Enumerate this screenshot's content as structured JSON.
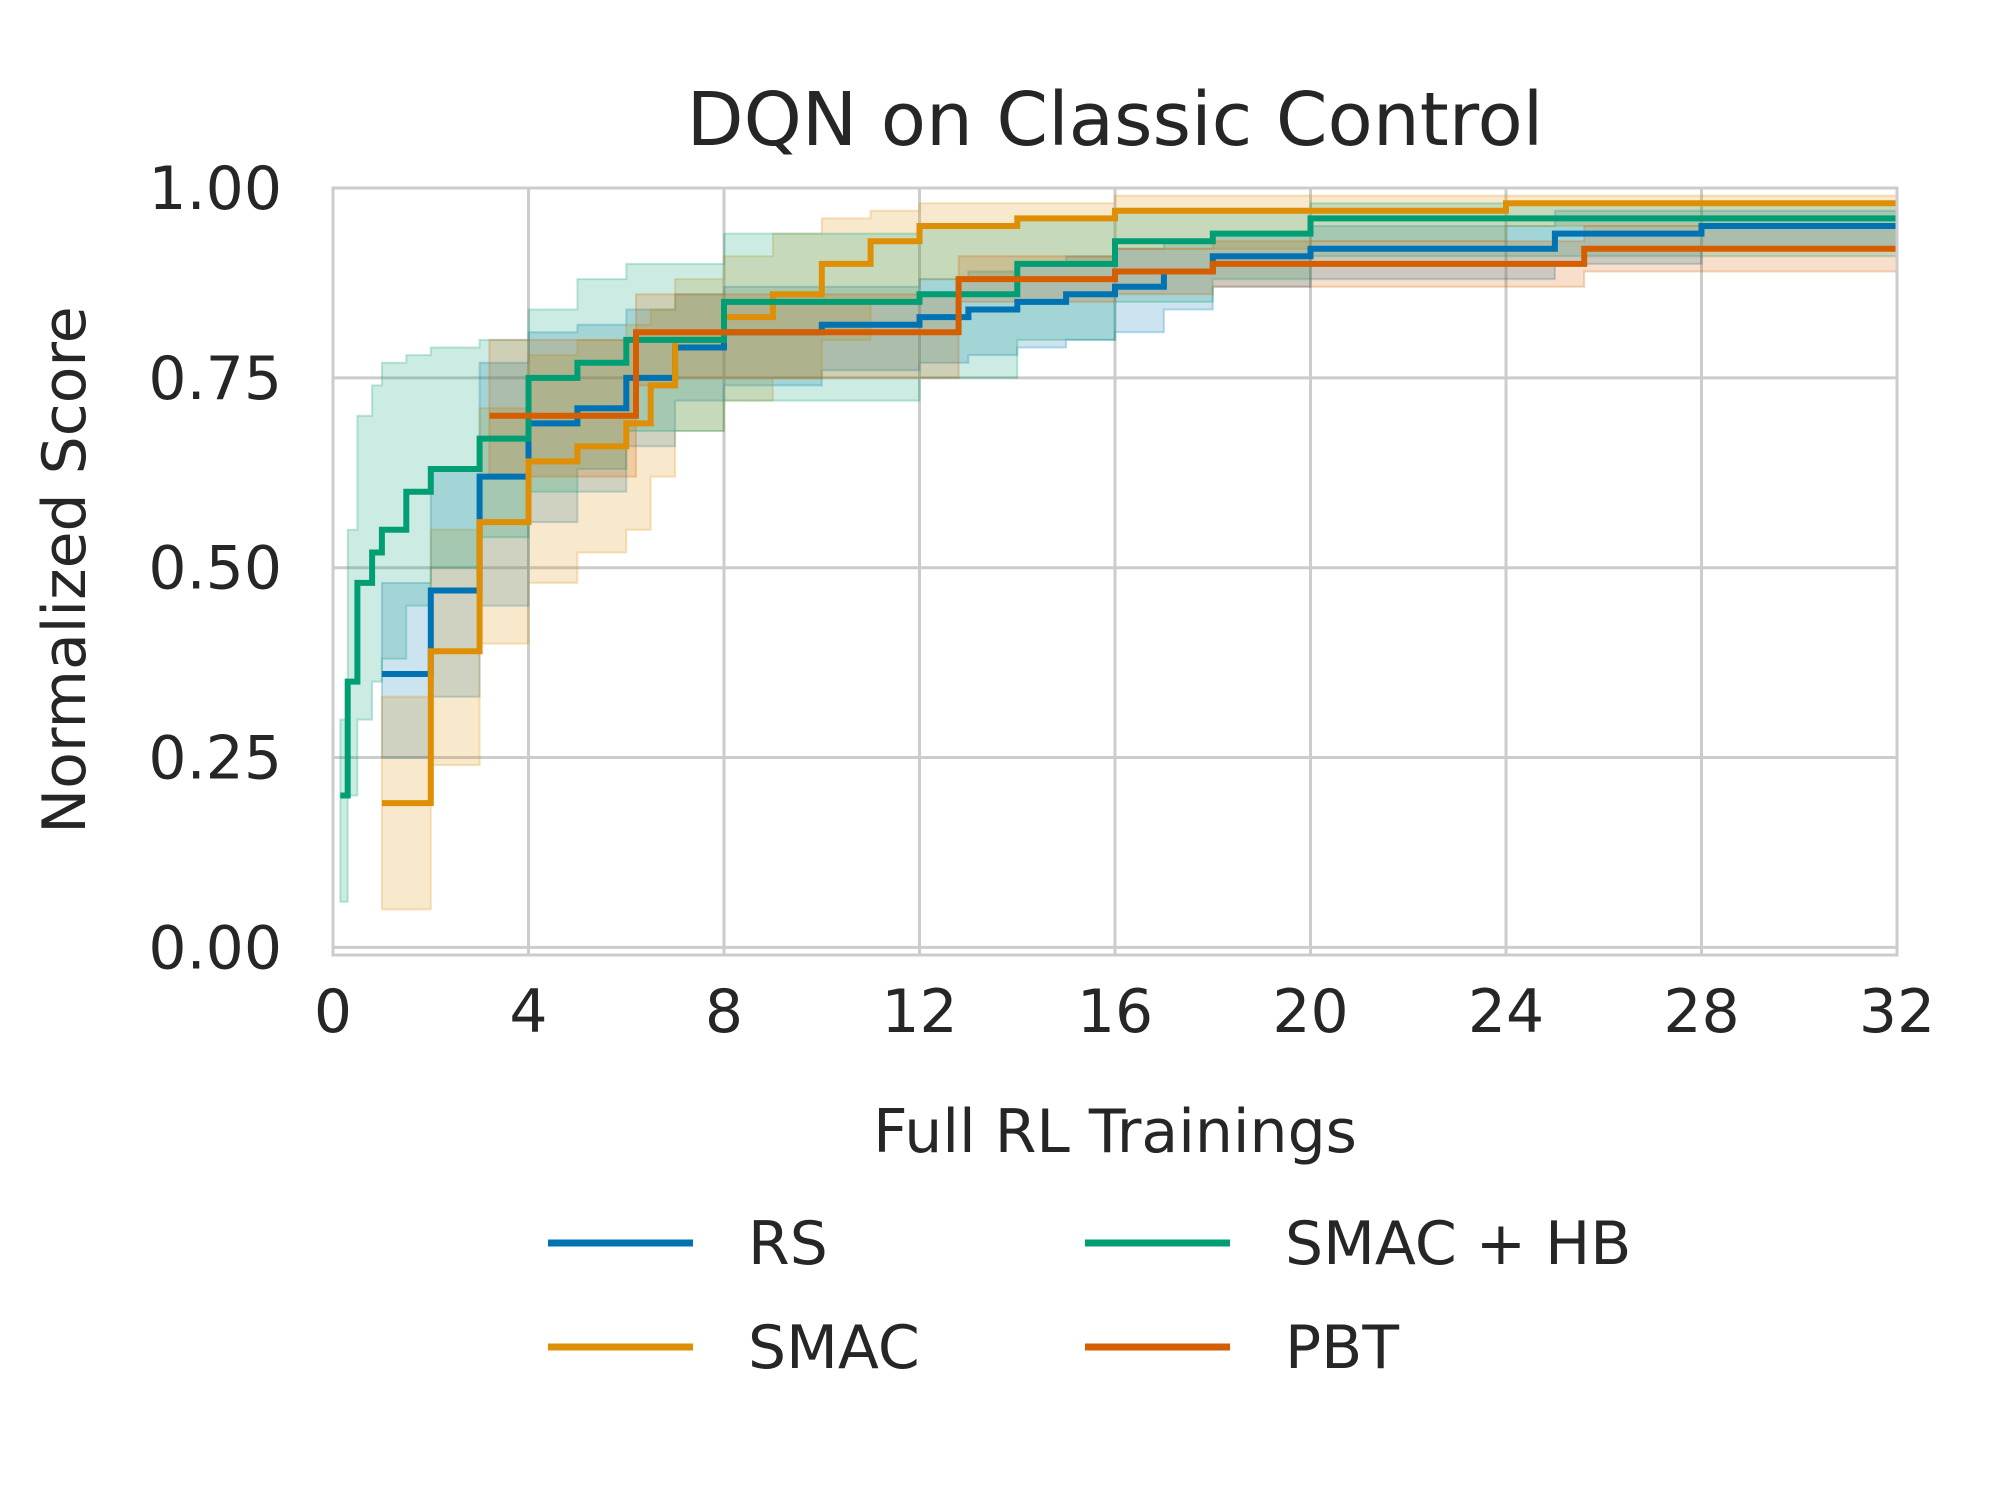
{
  "chart_data": {
    "type": "line",
    "title": "DQN on Classic Control",
    "xlabel": "Full RL Trainings",
    "ylabel": "Normalized Score",
    "xlim": [
      0,
      32
    ],
    "ylim": [
      -0.01,
      1.0
    ],
    "xticks": [
      0,
      4,
      8,
      12,
      16,
      20,
      24,
      28,
      32
    ],
    "yticks": [
      0.0,
      0.25,
      0.5,
      0.75,
      1.0
    ],
    "xtick_labels": [
      "0",
      "4",
      "8",
      "12",
      "16",
      "20",
      "24",
      "28",
      "32"
    ],
    "ytick_labels": [
      "0.00",
      "0.25",
      "0.50",
      "0.75",
      "1.00"
    ],
    "grid": true,
    "legend_position": "bottom-center",
    "step_lines": true,
    "series": [
      {
        "name": "RS",
        "color": "#0173b2",
        "x": [
          1,
          2,
          3,
          4,
          5,
          6,
          7,
          8,
          10,
          12,
          13,
          14,
          15,
          16,
          17,
          18,
          20,
          25,
          28,
          32
        ],
        "values": [
          0.36,
          0.47,
          0.62,
          0.69,
          0.71,
          0.75,
          0.79,
          0.81,
          0.82,
          0.83,
          0.84,
          0.85,
          0.86,
          0.87,
          0.89,
          0.91,
          0.92,
          0.94,
          0.95,
          0.95
        ],
        "lower": [
          0.25,
          0.33,
          0.45,
          0.56,
          0.6,
          0.66,
          0.72,
          0.74,
          0.76,
          0.77,
          0.78,
          0.79,
          0.8,
          0.81,
          0.84,
          0.87,
          0.88,
          0.9,
          0.92,
          0.92
        ],
        "upper": [
          0.48,
          0.63,
          0.77,
          0.81,
          0.82,
          0.84,
          0.86,
          0.87,
          0.87,
          0.88,
          0.89,
          0.9,
          0.91,
          0.92,
          0.93,
          0.94,
          0.95,
          0.97,
          0.97,
          0.97
        ]
      },
      {
        "name": "SMAC",
        "color": "#de8f05",
        "x": [
          1,
          2,
          3,
          4,
          5,
          6,
          6.5,
          7,
          8,
          9,
          10,
          11,
          12,
          14,
          16,
          20,
          24,
          32
        ],
        "values": [
          0.19,
          0.39,
          0.56,
          0.64,
          0.66,
          0.69,
          0.74,
          0.8,
          0.83,
          0.86,
          0.9,
          0.93,
          0.95,
          0.96,
          0.97,
          0.97,
          0.98,
          0.98
        ],
        "lower": [
          0.05,
          0.24,
          0.4,
          0.48,
          0.52,
          0.55,
          0.62,
          0.68,
          0.72,
          0.75,
          0.8,
          0.85,
          0.88,
          0.9,
          0.92,
          0.93,
          0.95,
          0.95
        ],
        "upper": [
          0.33,
          0.55,
          0.71,
          0.78,
          0.8,
          0.82,
          0.84,
          0.88,
          0.91,
          0.94,
          0.96,
          0.97,
          0.98,
          0.98,
          0.99,
          0.99,
          0.99,
          0.99
        ]
      },
      {
        "name": "SMAC + HB",
        "color": "#029e73",
        "x": [
          0.15,
          0.3,
          0.5,
          0.8,
          1.0,
          1.5,
          2.0,
          3.0,
          4.0,
          5.0,
          6.0,
          8.0,
          12.0,
          14.0,
          16.0,
          18.0,
          20.0,
          32.0
        ],
        "values": [
          0.2,
          0.35,
          0.48,
          0.52,
          0.55,
          0.6,
          0.63,
          0.67,
          0.75,
          0.77,
          0.8,
          0.85,
          0.86,
          0.9,
          0.93,
          0.94,
          0.96,
          0.96
        ],
        "lower": [
          0.06,
          0.2,
          0.3,
          0.35,
          0.38,
          0.45,
          0.5,
          0.54,
          0.6,
          0.63,
          0.68,
          0.72,
          0.75,
          0.8,
          0.85,
          0.88,
          0.91,
          0.92
        ],
        "upper": [
          0.3,
          0.55,
          0.7,
          0.74,
          0.77,
          0.78,
          0.79,
          0.8,
          0.84,
          0.88,
          0.9,
          0.94,
          0.95,
          0.96,
          0.97,
          0.97,
          0.98,
          0.98
        ]
      },
      {
        "name": "PBT",
        "color": "#d55e00",
        "x": [
          3.2,
          6.2,
          7.0,
          12.8,
          16.0,
          18.0,
          25.6,
          32.0
        ],
        "values": [
          0.7,
          0.81,
          0.81,
          0.88,
          0.89,
          0.9,
          0.92,
          0.92
        ],
        "lower": [
          0.62,
          0.74,
          0.75,
          0.85,
          0.86,
          0.87,
          0.89,
          0.89
        ],
        "upper": [
          0.8,
          0.86,
          0.86,
          0.91,
          0.92,
          0.93,
          0.95,
          0.95
        ]
      }
    ]
  }
}
